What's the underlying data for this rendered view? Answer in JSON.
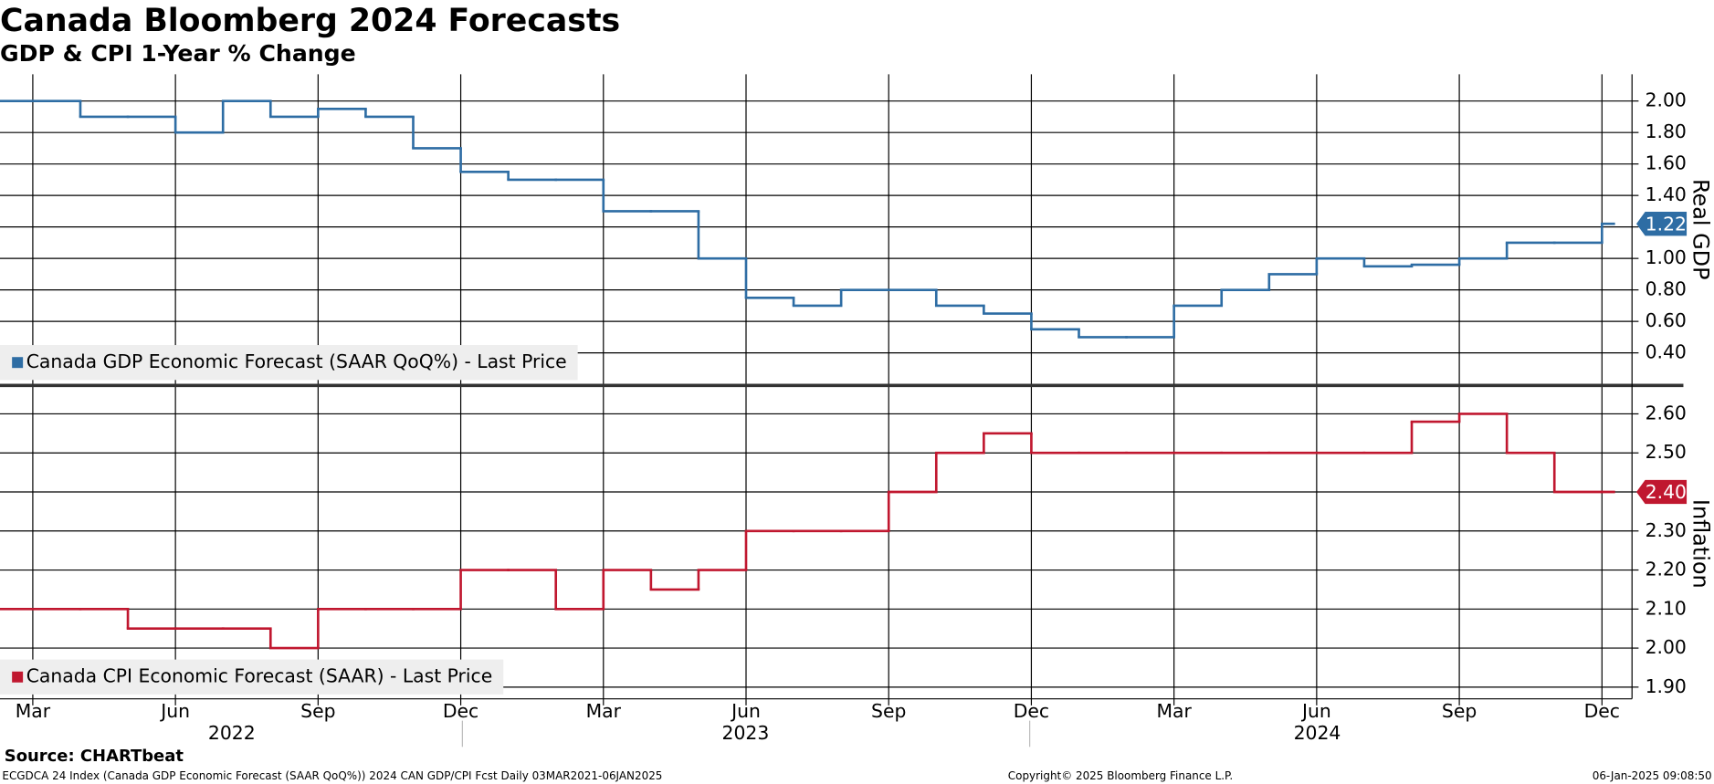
{
  "chart_data": [
    {
      "type": "line",
      "title": "Canada Bloomberg 2024 Forecasts",
      "subtitle": "GDP & CPI 1-Year % Change",
      "y_label": "Real GDP",
      "x": [
        "2022-02",
        "2022-03",
        "2022-04",
        "2022-05",
        "2022-06",
        "2022-07",
        "2022-08",
        "2022-09",
        "2022-10",
        "2022-11",
        "2022-12",
        "2023-01",
        "2023-02",
        "2023-03",
        "2023-04",
        "2023-05",
        "2023-06",
        "2023-07",
        "2023-08",
        "2023-09",
        "2023-10",
        "2023-11",
        "2023-12",
        "2024-01",
        "2024-02",
        "2024-03",
        "2024-04",
        "2024-05",
        "2024-06",
        "2024-07",
        "2024-08",
        "2024-09",
        "2024-10",
        "2024-11",
        "2024-12"
      ],
      "series": [
        {
          "name": "Canada GDP Economic Forecast (SAAR QoQ%) - Last Price",
          "color": "#2e6da4",
          "values": [
            2.0,
            2.0,
            1.9,
            1.9,
            1.8,
            2.0,
            1.9,
            1.95,
            1.9,
            1.7,
            1.55,
            1.5,
            1.5,
            1.3,
            1.3,
            1.0,
            0.75,
            0.7,
            0.8,
            0.8,
            0.7,
            0.65,
            0.55,
            0.5,
            0.5,
            0.7,
            0.8,
            0.9,
            1.0,
            0.95,
            0.96,
            1.0,
            1.1,
            1.1,
            1.22
          ],
          "last_label": "1.22"
        }
      ],
      "xlim": [
        "2022-02",
        "2025-01"
      ],
      "ylim": [
        0.2,
        2.17
      ],
      "yticks": [
        {
          "value": 2.0,
          "label": "2.00"
        },
        {
          "value": 1.8,
          "label": "1.80"
        },
        {
          "value": 1.6,
          "label": "1.60"
        },
        {
          "value": 1.4,
          "label": "1.40"
        },
        {
          "value": 1.2,
          "label": "1.20"
        },
        {
          "value": 1.0,
          "label": "1.00"
        },
        {
          "value": 0.8,
          "label": "0.80"
        },
        {
          "value": 0.6,
          "label": "0.60"
        },
        {
          "value": 0.4,
          "label": "0.40"
        }
      ],
      "grid": true
    },
    {
      "type": "line",
      "y_label": "Inflation",
      "x": [
        "2022-02",
        "2022-03",
        "2022-04",
        "2022-05",
        "2022-06",
        "2022-07",
        "2022-08",
        "2022-09",
        "2022-10",
        "2022-11",
        "2022-12",
        "2023-01",
        "2023-02",
        "2023-03",
        "2023-04",
        "2023-05",
        "2023-06",
        "2023-07",
        "2023-08",
        "2023-09",
        "2023-10",
        "2023-11",
        "2023-12",
        "2024-01",
        "2024-02",
        "2024-03",
        "2024-04",
        "2024-05",
        "2024-06",
        "2024-07",
        "2024-08",
        "2024-09",
        "2024-10",
        "2024-11",
        "2024-12"
      ],
      "series": [
        {
          "name": "Canada CPI Economic Forecast (SAAR) - Last Price",
          "color": "#c0172f",
          "values": [
            2.1,
            2.1,
            2.1,
            2.05,
            2.05,
            2.05,
            2.0,
            2.1,
            2.1,
            2.1,
            2.2,
            2.2,
            2.1,
            2.2,
            2.15,
            2.2,
            2.3,
            2.3,
            2.3,
            2.4,
            2.5,
            2.55,
            2.5,
            2.5,
            2.5,
            2.5,
            2.5,
            2.5,
            2.5,
            2.5,
            2.58,
            2.6,
            2.5,
            2.4,
            2.4
          ],
          "last_label": "2.40"
        }
      ],
      "xlim": [
        "2022-02",
        "2025-01"
      ],
      "xticks": [
        {
          "value": "2022-03",
          "label": "Mar"
        },
        {
          "value": "2022-06",
          "label": "Jun"
        },
        {
          "value": "2022-09",
          "label": "Sep"
        },
        {
          "value": "2022-12",
          "label": "Dec"
        },
        {
          "value": "2023-03",
          "label": "Mar"
        },
        {
          "value": "2023-06",
          "label": "Jun"
        },
        {
          "value": "2023-09",
          "label": "Sep"
        },
        {
          "value": "2023-12",
          "label": "Dec"
        },
        {
          "value": "2024-03",
          "label": "Mar"
        },
        {
          "value": "2024-06",
          "label": "Jun"
        },
        {
          "value": "2024-09",
          "label": "Sep"
        },
        {
          "value": "2024-12",
          "label": "Dec"
        }
      ],
      "years": [
        "2022",
        "2023",
        "2024"
      ],
      "ylim": [
        1.87,
        2.67
      ],
      "yticks": [
        {
          "value": 2.6,
          "label": "2.60"
        },
        {
          "value": 2.5,
          "label": "2.50"
        },
        {
          "value": 2.4,
          "label": "2.40"
        },
        {
          "value": 2.3,
          "label": "2.30"
        },
        {
          "value": 2.2,
          "label": "2.20"
        },
        {
          "value": 2.1,
          "label": "2.10"
        },
        {
          "value": 2.0,
          "label": "2.00"
        },
        {
          "value": 1.9,
          "label": "1.90"
        }
      ],
      "grid": true
    }
  ],
  "footer": {
    "source": "Source: CHARTbeat",
    "info": "ECGDCA 24 Index (Canada GDP Economic Forecast (SAAR QoQ%)) 2024 CAN GDP/CPI Fcst  Daily 03MAR2021-06JAN2025",
    "copyright": "Copyright© 2025 Bloomberg Finance L.P.",
    "timestamp": "06-Jan-2025 09:08:50"
  }
}
